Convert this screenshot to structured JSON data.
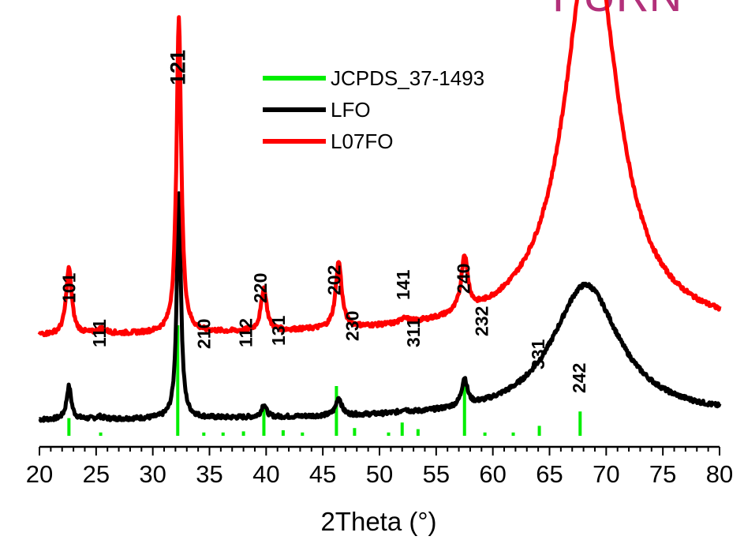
{
  "corner_text": "PURN",
  "chart_data": {
    "type": "line",
    "xlabel": "2Theta (°)",
    "ylabel": "",
    "xlim": [
      20,
      80
    ],
    "xticks": [
      "20",
      "25",
      "30",
      "35",
      "40",
      "45",
      "50",
      "55",
      "60",
      "65",
      "70",
      "75",
      "80"
    ],
    "grid": false,
    "legend_position": "top-center",
    "legend": [
      {
        "name": "JCPDS_37-1493",
        "color": "#00ee00"
      },
      {
        "name": "LFO",
        "color": "#000000"
      },
      {
        "name": "L07FO",
        "color": "#ff0000"
      }
    ],
    "series": [
      {
        "name": "LFO",
        "color": "#000000",
        "baseline": 0.05,
        "baseline_end": 0.08,
        "peaks": [
          {
            "x": 22.6,
            "height": 0.28,
            "width": 0.25
          },
          {
            "x": 25.3,
            "height": 0.02,
            "width": 0.4
          },
          {
            "x": 32.3,
            "height": 1.9,
            "width": 0.22
          },
          {
            "x": 39.8,
            "height": 0.11,
            "width": 0.25
          },
          {
            "x": 46.4,
            "height": 0.15,
            "width": 0.3
          },
          {
            "x": 52.2,
            "height": 0.03,
            "width": 0.3
          },
          {
            "x": 57.5,
            "height": 0.23,
            "width": 0.3
          },
          {
            "x": 68.2,
            "height": 1.12,
            "width": 3.6
          }
        ]
      },
      {
        "name": "L07FO",
        "color": "#ff0000",
        "baseline": 0.76,
        "baseline_end": 0.8,
        "peaks": [
          {
            "x": 22.6,
            "height": 0.56,
            "width": 0.3
          },
          {
            "x": 25.5,
            "height": 0.04,
            "width": 0.5
          },
          {
            "x": 32.3,
            "height": 2.65,
            "width": 0.25
          },
          {
            "x": 39.8,
            "height": 0.36,
            "width": 0.3
          },
          {
            "x": 46.4,
            "height": 0.56,
            "width": 0.32
          },
          {
            "x": 52.2,
            "height": 0.05,
            "width": 0.3
          },
          {
            "x": 57.5,
            "height": 0.47,
            "width": 0.35
          },
          {
            "x": 68.7,
            "height": 3.4,
            "width": 2.8
          }
        ]
      }
    ],
    "reference": {
      "name": "JCPDS_37-1493",
      "color": "#00ee00",
      "lines": [
        {
          "x": 22.6,
          "intensity": 0.16
        },
        {
          "x": 25.4,
          "intensity": 0.03
        },
        {
          "x": 32.2,
          "intensity": 1.0
        },
        {
          "x": 34.5,
          "intensity": 0.03
        },
        {
          "x": 36.2,
          "intensity": 0.03
        },
        {
          "x": 38.0,
          "intensity": 0.04
        },
        {
          "x": 39.8,
          "intensity": 0.28
        },
        {
          "x": 41.5,
          "intensity": 0.05
        },
        {
          "x": 43.2,
          "intensity": 0.03
        },
        {
          "x": 46.2,
          "intensity": 0.45
        },
        {
          "x": 47.8,
          "intensity": 0.07
        },
        {
          "x": 50.8,
          "intensity": 0.03
        },
        {
          "x": 52.0,
          "intensity": 0.12
        },
        {
          "x": 53.4,
          "intensity": 0.06
        },
        {
          "x": 57.5,
          "intensity": 0.48
        },
        {
          "x": 59.3,
          "intensity": 0.03
        },
        {
          "x": 61.8,
          "intensity": 0.03
        },
        {
          "x": 64.1,
          "intensity": 0.09
        },
        {
          "x": 67.7,
          "intensity": 0.22
        }
      ]
    },
    "annotations": [
      {
        "text": "101",
        "x": 22.6
      },
      {
        "text": "111",
        "x": 25.3
      },
      {
        "text": "121",
        "x": 32.3
      },
      {
        "text": "210",
        "x": 34.5
      },
      {
        "text": "112",
        "x": 38.2
      },
      {
        "text": "220",
        "x": 39.5
      },
      {
        "text": "131",
        "x": 41.1
      },
      {
        "text": "202",
        "x": 46.0
      },
      {
        "text": "230",
        "x": 47.6
      },
      {
        "text": "141",
        "x": 52.1
      },
      {
        "text": "311",
        "x": 53.0
      },
      {
        "text": "240",
        "x": 57.4
      },
      {
        "text": "232",
        "x": 59.0
      },
      {
        "text": "331",
        "x": 64.0
      },
      {
        "text": "242",
        "x": 67.6
      }
    ]
  }
}
